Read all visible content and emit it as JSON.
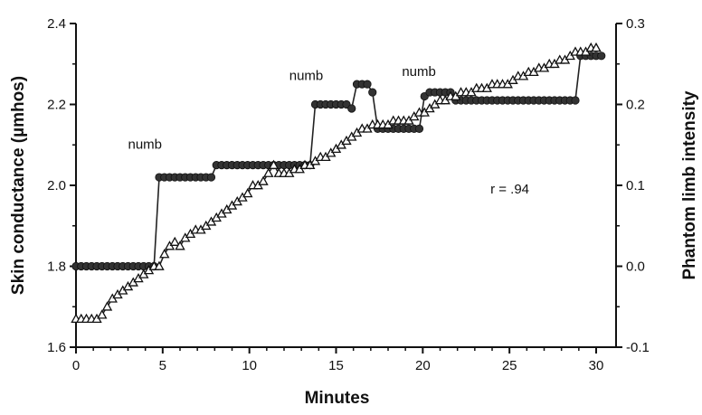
{
  "chart_data": {
    "type": "line",
    "xlabel": "Minutes",
    "ylabel": "Skin conductance (µmhos)",
    "y2label": "Phantom limb intensity",
    "xlim": [
      0,
      31
    ],
    "ylim": [
      1.6,
      2.4
    ],
    "y2lim": [
      -0.1,
      0.3
    ],
    "x_ticks": [
      0,
      5,
      10,
      15,
      20,
      25,
      30
    ],
    "y_ticks": [
      1.6,
      1.8,
      2.0,
      2.2,
      2.4
    ],
    "y2_ticks": [
      -0.1,
      0.0,
      0.1,
      0.2,
      0.3
    ],
    "x_tick_labels": [
      "0",
      "5",
      "10",
      "15",
      "20",
      "25",
      "30"
    ],
    "y_tick_labels": [
      "1.6",
      "1.8",
      "2.0",
      "2.2",
      "2.4"
    ],
    "y2_tick_labels": [
      "-0.1",
      "0.0",
      "0.1",
      "0.2",
      "0.3"
    ],
    "grid": false,
    "legend": "none",
    "annotations": [
      {
        "text": "numb",
        "x": 3,
        "y": 2.09
      },
      {
        "text": "numb",
        "x": 12.3,
        "y": 2.26
      },
      {
        "text": "numb",
        "x": 18.8,
        "y": 2.27
      },
      {
        "text": "r = .94",
        "x": 23.9,
        "y": 1.98
      }
    ],
    "series": [
      {
        "axis": "left",
        "marker": "circle",
        "x": [
          0,
          0.3,
          0.6,
          0.9,
          1.2,
          1.5,
          1.8,
          2.1,
          2.4,
          2.7,
          3.0,
          3.3,
          3.6,
          3.9,
          4.2,
          4.5,
          4.8,
          5.1,
          5.4,
          5.7,
          6.0,
          6.3,
          6.6,
          6.9,
          7.2,
          7.5,
          7.8,
          8.1,
          8.4,
          8.7,
          9.0,
          9.3,
          9.6,
          9.9,
          10.2,
          10.5,
          10.8,
          11.1,
          11.4,
          11.7,
          12.0,
          12.3,
          12.6,
          12.9,
          13.2,
          13.5,
          13.8,
          14.1,
          14.4,
          14.7,
          15.0,
          15.3,
          15.6,
          15.9,
          16.2,
          16.5,
          16.8,
          17.1,
          17.4,
          17.7,
          18.0,
          18.3,
          18.6,
          18.9,
          19.2,
          19.5,
          19.8,
          20.1,
          20.4,
          20.7,
          21.0,
          21.3,
          21.6,
          21.9,
          22.2,
          22.5,
          22.8,
          23.1,
          23.4,
          23.7,
          24.0,
          24.3,
          24.6,
          24.9,
          25.2,
          25.5,
          25.8,
          26.1,
          26.4,
          26.7,
          27.0,
          27.3,
          27.6,
          27.9,
          28.2,
          28.5,
          28.8,
          29.1,
          29.4,
          29.7,
          30.0,
          30.3
        ],
        "values": [
          1.8,
          1.8,
          1.8,
          1.8,
          1.8,
          1.8,
          1.8,
          1.8,
          1.8,
          1.8,
          1.8,
          1.8,
          1.8,
          1.8,
          1.8,
          1.8,
          2.02,
          2.02,
          2.02,
          2.02,
          2.02,
          2.02,
          2.02,
          2.02,
          2.02,
          2.02,
          2.02,
          2.05,
          2.05,
          2.05,
          2.05,
          2.05,
          2.05,
          2.05,
          2.05,
          2.05,
          2.05,
          2.05,
          2.05,
          2.05,
          2.05,
          2.05,
          2.05,
          2.05,
          2.05,
          2.05,
          2.2,
          2.2,
          2.2,
          2.2,
          2.2,
          2.2,
          2.2,
          2.19,
          2.25,
          2.25,
          2.25,
          2.23,
          2.14,
          2.14,
          2.14,
          2.14,
          2.14,
          2.14,
          2.14,
          2.14,
          2.14,
          2.22,
          2.23,
          2.23,
          2.23,
          2.23,
          2.23,
          2.21,
          2.21,
          2.21,
          2.21,
          2.21,
          2.21,
          2.21,
          2.21,
          2.21,
          2.21,
          2.21,
          2.21,
          2.21,
          2.21,
          2.21,
          2.21,
          2.21,
          2.21,
          2.21,
          2.21,
          2.21,
          2.21,
          2.21,
          2.21,
          2.32,
          2.32,
          2.32,
          2.32,
          2.32
        ]
      },
      {
        "axis": "right",
        "marker": "triangle",
        "x": [
          0,
          0.3,
          0.6,
          0.9,
          1.2,
          1.5,
          1.8,
          2.1,
          2.4,
          2.7,
          3.0,
          3.3,
          3.6,
          3.9,
          4.2,
          4.5,
          4.8,
          5.1,
          5.4,
          5.7,
          6.0,
          6.3,
          6.6,
          6.9,
          7.2,
          7.5,
          7.8,
          8.1,
          8.4,
          8.7,
          9.0,
          9.3,
          9.6,
          9.9,
          10.2,
          10.5,
          10.8,
          11.1,
          11.4,
          11.7,
          12.0,
          12.3,
          12.6,
          12.9,
          13.2,
          13.5,
          13.8,
          14.1,
          14.4,
          14.7,
          15.0,
          15.3,
          15.6,
          15.9,
          16.2,
          16.5,
          16.8,
          17.1,
          17.4,
          17.7,
          18.0,
          18.3,
          18.6,
          18.9,
          19.2,
          19.5,
          19.8,
          20.1,
          20.4,
          20.7,
          21.0,
          21.3,
          21.6,
          21.9,
          22.2,
          22.5,
          22.8,
          23.1,
          23.4,
          23.7,
          24.0,
          24.3,
          24.6,
          24.9,
          25.2,
          25.5,
          25.8,
          26.1,
          26.4,
          26.7,
          27.0,
          27.3,
          27.6,
          27.9,
          28.2,
          28.5,
          28.8,
          29.1,
          29.4,
          29.7,
          30.0
        ],
        "values": [
          -0.065,
          -0.065,
          -0.065,
          -0.065,
          -0.065,
          -0.06,
          -0.05,
          -0.04,
          -0.035,
          -0.03,
          -0.025,
          -0.02,
          -0.015,
          -0.01,
          -0.005,
          0.0,
          0.0,
          0.015,
          0.025,
          0.03,
          0.025,
          0.035,
          0.04,
          0.045,
          0.045,
          0.05,
          0.055,
          0.06,
          0.065,
          0.07,
          0.075,
          0.08,
          0.085,
          0.09,
          0.1,
          0.1,
          0.105,
          0.115,
          0.125,
          0.115,
          0.115,
          0.115,
          0.12,
          0.12,
          0.125,
          0.125,
          0.13,
          0.135,
          0.135,
          0.14,
          0.145,
          0.15,
          0.155,
          0.16,
          0.165,
          0.17,
          0.17,
          0.175,
          0.175,
          0.175,
          0.175,
          0.18,
          0.18,
          0.18,
          0.18,
          0.185,
          0.19,
          0.19,
          0.195,
          0.2,
          0.205,
          0.205,
          0.21,
          0.21,
          0.215,
          0.215,
          0.215,
          0.22,
          0.22,
          0.22,
          0.225,
          0.225,
          0.225,
          0.225,
          0.23,
          0.235,
          0.235,
          0.24,
          0.24,
          0.245,
          0.245,
          0.25,
          0.25,
          0.255,
          0.255,
          0.26,
          0.265,
          0.265,
          0.265,
          0.27,
          0.27
        ]
      }
    ]
  }
}
